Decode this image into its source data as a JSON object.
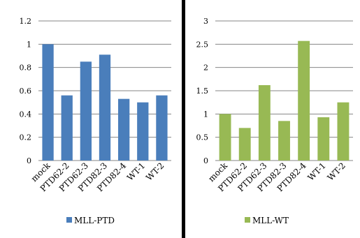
{
  "chart_data": [
    {
      "type": "bar",
      "categories": [
        "mock",
        "PTD62-2",
        "PTD62-3",
        "PTD82-3",
        "PTD82-4",
        "WT-1",
        "WT-2"
      ],
      "series": [
        {
          "name": "MLL-PTD",
          "values": [
            1.0,
            0.56,
            0.85,
            0.91,
            0.53,
            0.5,
            0.56
          ],
          "color": "#4a7ebb"
        }
      ],
      "ylim": [
        0,
        1.2
      ],
      "yticks": [
        "0",
        "0.2",
        "0.4",
        "0.6",
        "0.8",
        "1",
        "1.2"
      ],
      "grid": true,
      "legend_position": "bottom"
    },
    {
      "type": "bar",
      "categories": [
        "mock",
        "PTD62-2",
        "PTD62-3",
        "PTD82-3",
        "PTD82-4",
        "WT-1",
        "WT-2"
      ],
      "series": [
        {
          "name": "MLL-WT",
          "values": [
            1.0,
            0.7,
            1.62,
            0.85,
            2.57,
            0.93,
            1.25
          ],
          "color": "#98b954"
        }
      ],
      "ylim": [
        0,
        3
      ],
      "yticks": [
        "0",
        "0.5",
        "1",
        "1.5",
        "2",
        "2.5",
        "3"
      ],
      "grid": true,
      "legend_position": "bottom"
    }
  ]
}
